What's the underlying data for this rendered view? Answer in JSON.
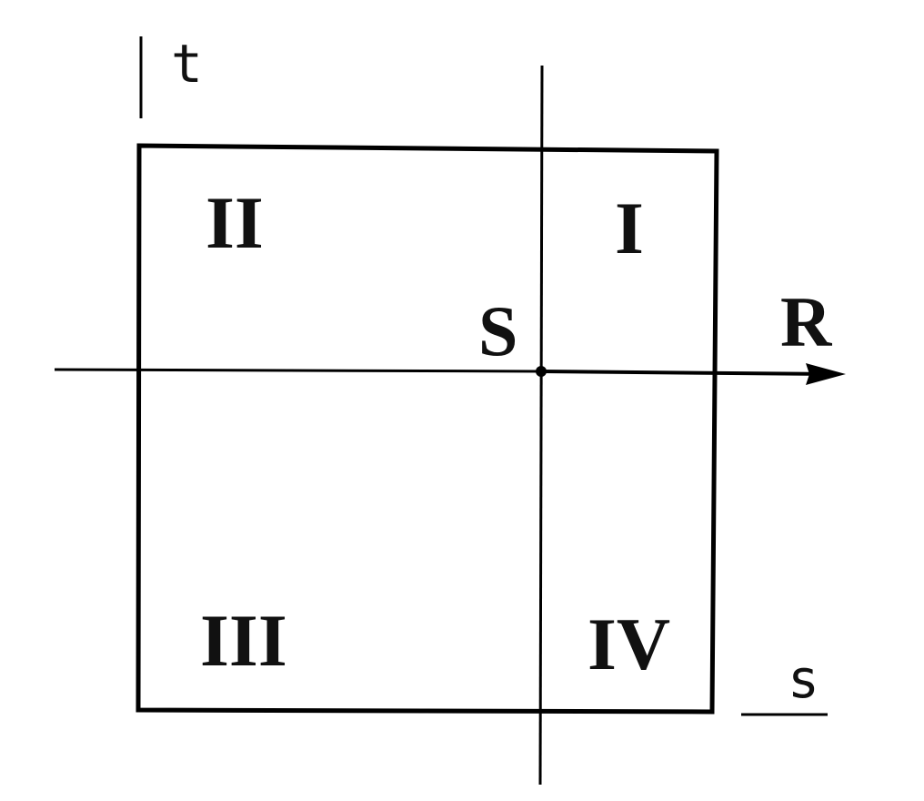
{
  "labels": {
    "quadrant_1": "I",
    "quadrant_2": "II",
    "quadrant_3": "III",
    "quadrant_4": "IV",
    "origin": "S",
    "horizontal_axis": "R",
    "vertical_marker": "t",
    "horizontal_marker": "s"
  }
}
